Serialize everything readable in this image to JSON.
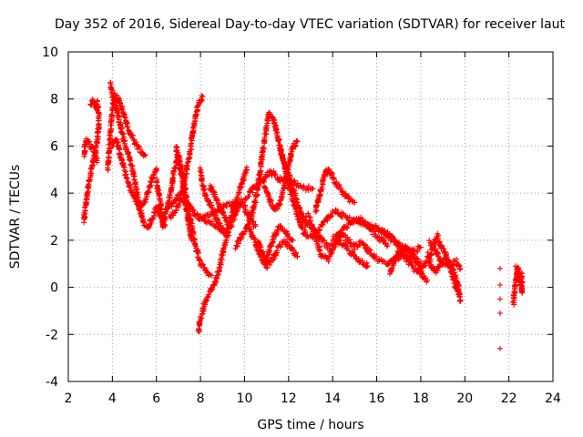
{
  "chart_data": {
    "type": "scatter",
    "title": "Day 352 of 2016, Sidereal Day-to-day VTEC variation (SDTVAR) for receiver laut",
    "xlabel": "GPS time / hours",
    "ylabel": "SDTVAR / TECUs",
    "xlim": [
      2,
      24
    ],
    "ylim": [
      -4,
      10
    ],
    "xticks": [
      "2",
      "4",
      "6",
      "8",
      "10",
      "12",
      "14",
      "16",
      "18",
      "20",
      "22",
      "24"
    ],
    "yticks": [
      "10",
      "8",
      "6",
      "4",
      "2",
      "0",
      "-2",
      "-4"
    ],
    "grid": true,
    "marker": "+",
    "color": "#ff0000",
    "tracks": [
      [
        [
          2.7,
          2.8
        ],
        [
          2.8,
          3.5
        ],
        [
          2.9,
          4.3
        ],
        [
          3.1,
          5.2
        ],
        [
          3.3,
          6.1
        ],
        [
          3.4,
          7.2
        ],
        [
          3.3,
          7.9
        ]
      ],
      [
        [
          2.7,
          5.6
        ],
        [
          2.8,
          6.3
        ],
        [
          3.0,
          6.0
        ],
        [
          3.2,
          5.8
        ],
        [
          3.3,
          5.3
        ]
      ],
      [
        [
          3.0,
          7.7
        ],
        [
          3.1,
          7.9
        ],
        [
          3.2,
          7.8
        ],
        [
          3.3,
          7.6
        ]
      ],
      [
        [
          3.8,
          5.0
        ],
        [
          3.9,
          6.5
        ],
        [
          4.0,
          7.5
        ],
        [
          4.1,
          8.2
        ],
        [
          4.3,
          8.0
        ],
        [
          4.5,
          7.4
        ],
        [
          4.7,
          6.8
        ],
        [
          5.0,
          6.2
        ],
        [
          5.3,
          5.8
        ],
        [
          5.5,
          5.6
        ]
      ],
      [
        [
          3.9,
          8.7
        ],
        [
          4.0,
          8.2
        ],
        [
          4.2,
          7.6
        ],
        [
          4.4,
          6.7
        ],
        [
          4.6,
          6.0
        ],
        [
          4.8,
          5.4
        ],
        [
          5.0,
          4.6
        ],
        [
          5.2,
          3.6
        ],
        [
          5.4,
          2.7
        ],
        [
          5.6,
          2.5
        ],
        [
          5.8,
          2.9
        ],
        [
          6.0,
          3.4
        ],
        [
          6.2,
          3.0
        ],
        [
          6.4,
          2.6
        ]
      ],
      [
        [
          4.0,
          6.0
        ],
        [
          4.2,
          6.3
        ],
        [
          4.4,
          5.5
        ],
        [
          4.6,
          4.8
        ],
        [
          4.8,
          4.2
        ],
        [
          5.0,
          3.8
        ],
        [
          5.2,
          3.4
        ],
        [
          5.4,
          3.5
        ],
        [
          5.6,
          4.0
        ],
        [
          5.8,
          4.6
        ],
        [
          6.0,
          5.0
        ]
      ],
      [
        [
          6.0,
          4.5
        ],
        [
          6.2,
          3.5
        ],
        [
          6.3,
          2.6
        ],
        [
          6.5,
          3.4
        ],
        [
          6.7,
          4.3
        ],
        [
          6.8,
          5.0
        ],
        [
          7.0,
          5.6
        ],
        [
          7.2,
          4.8
        ],
        [
          7.4,
          3.6
        ],
        [
          7.6,
          2.6
        ],
        [
          7.8,
          1.7
        ],
        [
          8.0,
          1.0
        ],
        [
          8.3,
          0.6
        ],
        [
          8.5,
          0.5
        ]
      ],
      [
        [
          6.6,
          3.0
        ],
        [
          6.8,
          3.2
        ],
        [
          7.0,
          3.5
        ],
        [
          7.2,
          4.2
        ],
        [
          7.5,
          5.6
        ],
        [
          7.7,
          6.9
        ],
        [
          7.9,
          7.8
        ],
        [
          8.1,
          8.1
        ]
      ],
      [
        [
          6.9,
          6.0
        ],
        [
          7.0,
          5.3
        ],
        [
          7.2,
          4.5
        ],
        [
          7.3,
          3.6
        ],
        [
          7.5,
          2.6
        ],
        [
          7.6,
          2.0
        ]
      ],
      [
        [
          6.5,
          3.4
        ],
        [
          6.8,
          3.6
        ],
        [
          7.0,
          3.9
        ],
        [
          7.3,
          3.6
        ],
        [
          7.6,
          3.3
        ],
        [
          7.9,
          3.0
        ],
        [
          8.3,
          2.8
        ],
        [
          8.7,
          2.6
        ],
        [
          9.0,
          2.4
        ],
        [
          9.3,
          2.2
        ]
      ],
      [
        [
          7.9,
          -1.9
        ],
        [
          8.0,
          -1.3
        ],
        [
          8.2,
          -0.7
        ],
        [
          8.4,
          -0.3
        ],
        [
          8.6,
          0.1
        ],
        [
          8.8,
          0.6
        ],
        [
          9.0,
          1.4
        ],
        [
          9.2,
          2.2
        ],
        [
          9.4,
          3.0
        ],
        [
          9.6,
          3.6
        ],
        [
          9.8,
          4.2
        ],
        [
          10.0,
          4.8
        ],
        [
          10.1,
          5.1
        ]
      ],
      [
        [
          8.0,
          5.0
        ],
        [
          8.1,
          4.3
        ],
        [
          8.3,
          3.8
        ],
        [
          8.5,
          3.4
        ],
        [
          8.7,
          3.0
        ],
        [
          8.9,
          2.6
        ],
        [
          9.1,
          2.3
        ],
        [
          9.3,
          2.5
        ],
        [
          9.5,
          2.9
        ],
        [
          9.7,
          3.4
        ],
        [
          9.9,
          3.6
        ],
        [
          10.1,
          3.2
        ],
        [
          10.3,
          2.8
        ],
        [
          10.5,
          2.6
        ]
      ],
      [
        [
          8.4,
          4.3
        ],
        [
          8.6,
          4.0
        ],
        [
          8.8,
          3.6
        ],
        [
          9.0,
          3.2
        ],
        [
          9.2,
          2.8
        ],
        [
          9.4,
          2.6
        ]
      ],
      [
        [
          8.0,
          2.9
        ],
        [
          8.4,
          3.1
        ],
        [
          8.8,
          3.3
        ],
        [
          9.2,
          3.5
        ],
        [
          9.6,
          3.6
        ],
        [
          10.0,
          3.7
        ],
        [
          10.4,
          4.2
        ],
        [
          10.8,
          4.6
        ],
        [
          11.2,
          4.9
        ],
        [
          11.6,
          4.6
        ],
        [
          12.0,
          4.6
        ],
        [
          12.4,
          4.4
        ],
        [
          12.8,
          4.2
        ],
        [
          13.1,
          4.2
        ]
      ],
      [
        [
          9.6,
          1.7
        ],
        [
          9.9,
          2.2
        ],
        [
          10.2,
          2.8
        ],
        [
          10.4,
          3.3
        ],
        [
          10.6,
          4.2
        ],
        [
          10.8,
          5.6
        ],
        [
          11.0,
          6.8
        ],
        [
          11.1,
          7.4
        ],
        [
          11.3,
          7.2
        ],
        [
          11.5,
          6.4
        ],
        [
          11.7,
          5.6
        ],
        [
          11.9,
          5.0
        ],
        [
          12.1,
          4.5
        ],
        [
          12.3,
          3.9
        ],
        [
          12.5,
          3.3
        ],
        [
          12.7,
          2.9
        ],
        [
          12.8,
          3.0
        ]
      ],
      [
        [
          10.2,
          2.6
        ],
        [
          10.4,
          2.1
        ],
        [
          10.6,
          1.6
        ],
        [
          10.8,
          1.2
        ],
        [
          11.0,
          0.9
        ],
        [
          11.2,
          1.1
        ],
        [
          11.4,
          1.4
        ],
        [
          11.6,
          1.8
        ],
        [
          11.8,
          1.9
        ],
        [
          12.1,
          1.7
        ],
        [
          12.4,
          1.3
        ]
      ],
      [
        [
          10.8,
          4.6
        ],
        [
          11.0,
          4.1
        ],
        [
          11.2,
          3.6
        ],
        [
          11.4,
          3.3
        ],
        [
          11.6,
          3.6
        ],
        [
          11.8,
          4.2
        ],
        [
          12.0,
          5.2
        ],
        [
          12.2,
          6.0
        ],
        [
          12.4,
          6.2
        ]
      ],
      [
        [
          10.6,
          2.0
        ],
        [
          10.8,
          1.5
        ],
        [
          11.0,
          1.2
        ],
        [
          11.2,
          1.8
        ],
        [
          11.4,
          2.3
        ],
        [
          11.6,
          2.6
        ],
        [
          11.8,
          2.4
        ],
        [
          12.0,
          2.1
        ],
        [
          12.2,
          2.0
        ]
      ],
      [
        [
          11.6,
          6.0
        ],
        [
          11.8,
          5.2
        ],
        [
          12.0,
          4.4
        ],
        [
          12.3,
          3.4
        ],
        [
          12.6,
          2.5
        ],
        [
          12.9,
          2.1
        ],
        [
          13.2,
          2.2
        ],
        [
          13.5,
          2.6
        ],
        [
          13.8,
          3.0
        ],
        [
          14.1,
          3.2
        ],
        [
          14.4,
          3.1
        ],
        [
          14.7,
          2.9
        ],
        [
          15.0,
          2.8
        ],
        [
          15.3,
          2.9
        ],
        [
          15.6,
          2.6
        ],
        [
          15.9,
          2.3
        ],
        [
          16.2,
          2.0
        ],
        [
          16.5,
          1.8
        ]
      ],
      [
        [
          12.6,
          2.8
        ],
        [
          12.9,
          2.7
        ],
        [
          13.2,
          2.4
        ],
        [
          13.5,
          2.0
        ],
        [
          13.8,
          1.7
        ],
        [
          14.1,
          1.8
        ],
        [
          14.4,
          1.9
        ],
        [
          14.7,
          1.6
        ],
        [
          15.0,
          1.3
        ],
        [
          15.3,
          1.1
        ],
        [
          15.6,
          0.9
        ]
      ],
      [
        [
          12.9,
          3.1
        ],
        [
          13.1,
          2.5
        ],
        [
          13.3,
          1.9
        ],
        [
          13.5,
          1.3
        ],
        [
          13.8,
          1.2
        ],
        [
          14.1,
          1.8
        ],
        [
          14.4,
          2.3
        ],
        [
          14.7,
          2.0
        ],
        [
          15.0,
          1.7
        ],
        [
          15.3,
          1.9
        ],
        [
          15.6,
          1.6
        ],
        [
          16.0,
          1.2
        ],
        [
          16.4,
          1.0
        ],
        [
          16.8,
          1.2
        ],
        [
          17.2,
          1.4
        ],
        [
          17.6,
          1.2
        ],
        [
          18.0,
          1.1
        ]
      ],
      [
        [
          13.2,
          3.2
        ],
        [
          13.4,
          3.9
        ],
        [
          13.6,
          4.7
        ],
        [
          13.8,
          5.0
        ],
        [
          14.1,
          4.5
        ],
        [
          14.4,
          4.1
        ],
        [
          14.7,
          3.8
        ],
        [
          15.0,
          3.6
        ]
      ],
      [
        [
          14.0,
          2.1
        ],
        [
          14.5,
          2.5
        ],
        [
          15.0,
          2.9
        ],
        [
          15.5,
          2.7
        ],
        [
          16.0,
          2.5
        ],
        [
          16.5,
          2.2
        ],
        [
          17.0,
          1.8
        ],
        [
          17.5,
          1.5
        ],
        [
          18.0,
          1.7
        ]
      ],
      [
        [
          16.1,
          2.5
        ],
        [
          16.4,
          2.3
        ],
        [
          16.7,
          2.1
        ],
        [
          17.0,
          1.8
        ],
        [
          17.3,
          1.2
        ],
        [
          17.6,
          0.9
        ],
        [
          17.9,
          0.6
        ],
        [
          18.1,
          0.8
        ],
        [
          18.4,
          1.2
        ],
        [
          18.6,
          1.9
        ],
        [
          18.8,
          2.2
        ]
      ],
      [
        [
          16.6,
          0.6
        ],
        [
          16.8,
          1.1
        ],
        [
          17.0,
          1.5
        ],
        [
          17.3,
          1.7
        ],
        [
          17.6,
          1.4
        ],
        [
          17.9,
          1.0
        ],
        [
          18.1,
          0.5
        ],
        [
          18.3,
          0.3
        ]
      ],
      [
        [
          18.3,
          1.4
        ],
        [
          18.5,
          0.9
        ],
        [
          18.7,
          0.7
        ],
        [
          18.9,
          1.0
        ],
        [
          19.1,
          1.2
        ],
        [
          19.3,
          1.0
        ],
        [
          19.5,
          0.3
        ],
        [
          19.7,
          -0.3
        ]
      ],
      [
        [
          18.8,
          2.0
        ],
        [
          19.0,
          1.6
        ],
        [
          19.2,
          1.2
        ],
        [
          19.4,
          0.8
        ],
        [
          19.6,
          0.4
        ],
        [
          19.7,
          0.0
        ],
        [
          19.8,
          -0.6
        ]
      ],
      [
        [
          18.4,
          1.9
        ],
        [
          18.6,
          1.7
        ],
        [
          18.8,
          1.3
        ],
        [
          19.0,
          1.0
        ],
        [
          19.3,
          1.0
        ],
        [
          19.6,
          1.1
        ],
        [
          19.8,
          0.8
        ]
      ],
      [
        [
          22.2,
          -0.7
        ],
        [
          22.3,
          0.1
        ],
        [
          22.4,
          0.9
        ],
        [
          22.5,
          0.3
        ],
        [
          22.6,
          -0.2
        ],
        [
          22.6,
          0.6
        ]
      ]
    ],
    "isolated_points": [
      [
        21.6,
        -2.6
      ],
      [
        21.6,
        -1.1
      ],
      [
        21.6,
        -0.5
      ],
      [
        21.6,
        0.1
      ],
      [
        21.6,
        0.8
      ],
      [
        22.3,
        0.9
      ]
    ]
  }
}
